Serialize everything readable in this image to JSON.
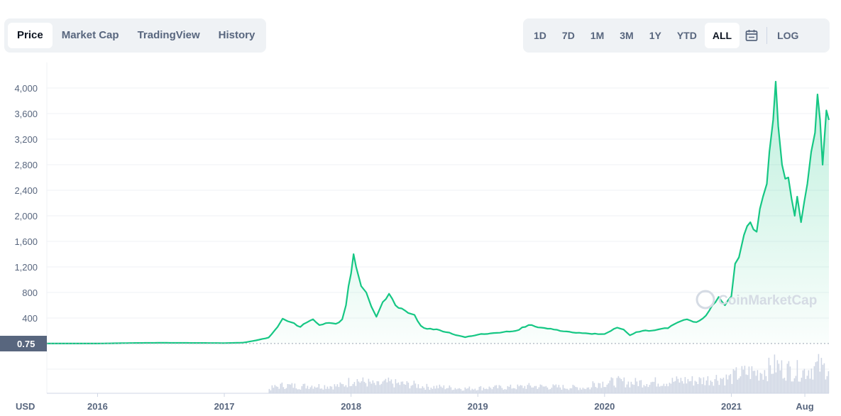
{
  "tabs_left": [
    {
      "label": "Price",
      "active": true
    },
    {
      "label": "Market Cap",
      "active": false
    },
    {
      "label": "TradingView",
      "active": false
    },
    {
      "label": "History",
      "active": false
    }
  ],
  "ranges": [
    {
      "label": "1D",
      "active": false
    },
    {
      "label": "7D",
      "active": false
    },
    {
      "label": "1M",
      "active": false
    },
    {
      "label": "3M",
      "active": false
    },
    {
      "label": "1Y",
      "active": false
    },
    {
      "label": "YTD",
      "active": false
    },
    {
      "label": "ALL",
      "active": true
    }
  ],
  "calendar_icon": "calendar-icon",
  "log_label": "LOG",
  "watermark": "CoinMarketCap",
  "chart_data": {
    "type": "line",
    "title": "",
    "xlabel": "",
    "ylabel": "USD",
    "currency_label": "USD",
    "current_price_label": "0.75",
    "baseline_value": 0.75,
    "ylim": [
      0,
      4300
    ],
    "xlim": [
      2015.6,
      2021.77
    ],
    "y_ticks": [
      400,
      800,
      1200,
      1600,
      2000,
      2400,
      2800,
      3200,
      3600,
      4000
    ],
    "y_tick_labels": [
      "400",
      "800",
      "1,200",
      "1,600",
      "2,000",
      "2,400",
      "2,800",
      "3,200",
      "3,600",
      "4,000"
    ],
    "x_ticks": [
      {
        "x": 2016.0,
        "label": "2016"
      },
      {
        "x": 2017.0,
        "label": "2017"
      },
      {
        "x": 2018.0,
        "label": "2018"
      },
      {
        "x": 2019.0,
        "label": "2019"
      },
      {
        "x": 2020.0,
        "label": "2020"
      },
      {
        "x": 2021.0,
        "label": "2021"
      },
      {
        "x": 2021.58,
        "label": "Aug"
      }
    ],
    "grid": true,
    "line_color": "#16c784",
    "series": [
      {
        "name": "",
        "x": [
          2015.6,
          2016.0,
          2016.3,
          2016.5,
          2016.8,
          2017.0,
          2017.15,
          2017.25,
          2017.35,
          2017.42,
          2017.46,
          2017.5,
          2017.55,
          2017.6,
          2017.65,
          2017.7,
          2017.75,
          2017.8,
          2017.88,
          2017.93,
          2017.96,
          2017.98,
          2018.0,
          2018.02,
          2018.04,
          2018.08,
          2018.12,
          2018.16,
          2018.2,
          2018.25,
          2018.3,
          2018.35,
          2018.4,
          2018.45,
          2018.5,
          2018.55,
          2018.6,
          2018.65,
          2018.7,
          2018.8,
          2018.9,
          2019.0,
          2019.1,
          2019.2,
          2019.3,
          2019.4,
          2019.5,
          2019.6,
          2019.7,
          2019.8,
          2019.9,
          2020.0,
          2020.1,
          2020.15,
          2020.2,
          2020.25,
          2020.3,
          2020.4,
          2020.5,
          2020.6,
          2020.65,
          2020.7,
          2020.75,
          2020.8,
          2020.85,
          2020.9,
          2020.95,
          2021.0,
          2021.03,
          2021.06,
          2021.1,
          2021.15,
          2021.2,
          2021.25,
          2021.28,
          2021.3,
          2021.33,
          2021.35,
          2021.37,
          2021.4,
          2021.45,
          2021.5,
          2021.52,
          2021.55,
          2021.6,
          2021.63,
          2021.66,
          2021.68,
          2021.7,
          2021.72,
          2021.75,
          2021.77
        ],
        "values": [
          1,
          1,
          10,
          12,
          10,
          8,
          15,
          50,
          95,
          260,
          390,
          350,
          320,
          260,
          330,
          380,
          290,
          320,
          310,
          380,
          600,
          900,
          1100,
          1400,
          1200,
          900,
          800,
          580,
          420,
          650,
          780,
          600,
          550,
          480,
          450,
          280,
          230,
          220,
          210,
          150,
          100,
          140,
          160,
          180,
          200,
          290,
          250,
          220,
          190,
          170,
          150,
          150,
          250,
          220,
          130,
          180,
          200,
          210,
          240,
          350,
          380,
          340,
          360,
          440,
          600,
          730,
          600,
          740,
          1250,
          1350,
          1700,
          1900,
          1750,
          2300,
          2500,
          3000,
          3500,
          4100,
          3400,
          2800,
          2600,
          2000,
          2300,
          1900,
          2500,
          3000,
          3300,
          3900,
          3500,
          2800,
          3650,
          3500
        ]
      }
    ],
    "volume_note": "volume bars below baseline"
  }
}
